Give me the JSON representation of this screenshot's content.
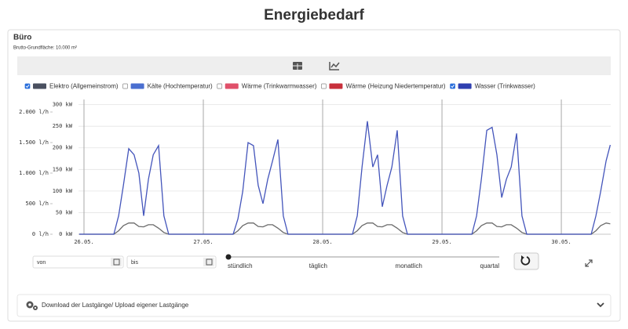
{
  "header": {
    "title": "Energiebedarf"
  },
  "panel": {
    "title": "Büro",
    "subtitle": "Brutto-Grundfläche: 10.000 m²"
  },
  "chart_data": {
    "type": "line",
    "x": [
      25.96,
      26.25,
      26.29,
      26.33,
      26.375,
      26.42,
      26.46,
      26.5,
      26.54,
      26.58,
      26.625,
      26.67,
      26.71,
      27.25,
      27.29,
      27.33,
      27.375,
      27.42,
      27.46,
      27.5,
      27.54,
      27.58,
      27.625,
      27.67,
      27.71,
      28.25,
      28.29,
      28.33,
      28.375,
      28.42,
      28.46,
      28.5,
      28.54,
      28.58,
      28.625,
      28.67,
      28.71,
      29.25,
      29.29,
      29.33,
      29.375,
      29.42,
      29.46,
      29.5,
      29.54,
      29.58,
      29.625,
      29.67,
      29.71,
      30.25,
      30.29,
      30.33,
      30.375,
      30.41
    ],
    "xlim": [
      25.954,
      30.414
    ],
    "xticks": [
      {
        "value": 26,
        "label": "26.05."
      },
      {
        "value": 27,
        "label": "27.05."
      },
      {
        "value": 28,
        "label": "28.05."
      },
      {
        "value": 29,
        "label": "29.05."
      },
      {
        "value": 30,
        "label": "30.05."
      }
    ],
    "ylim": [
      0,
      312
    ],
    "yticks": [
      {
        "value": 0,
        "label": "0 kW"
      },
      {
        "value": 50,
        "label": "50 kW"
      },
      {
        "value": 100,
        "label": "100 kW"
      },
      {
        "value": 150,
        "label": "150 kW"
      },
      {
        "value": 200,
        "label": "200 kW"
      },
      {
        "value": 250,
        "label": "250 kW"
      },
      {
        "value": 300,
        "label": "300 kW"
      }
    ],
    "y2lim": [
      0,
      2205
    ],
    "y2ticks": [
      {
        "value": 0,
        "label": "0 l/h"
      },
      {
        "value": 500,
        "label": "500 l/h"
      },
      {
        "value": 1000,
        "label": "1.000 l/h"
      },
      {
        "value": 1500,
        "label": "1.500 l/h"
      },
      {
        "value": 2000,
        "label": "2.000 l/h"
      }
    ],
    "grid": true,
    "series": [
      {
        "name": "Elektro (Allgemeinstrom)",
        "color": "#4a5060",
        "line_color": "#6b6b6b",
        "checked": true,
        "axis": "y",
        "values": [
          0,
          0,
          8,
          20,
          26,
          26,
          18,
          17,
          22,
          22,
          14,
          4,
          0,
          0,
          8,
          20,
          26,
          26,
          18,
          17,
          22,
          22,
          14,
          4,
          0,
          0,
          8,
          20,
          26,
          26,
          18,
          17,
          22,
          22,
          14,
          4,
          0,
          0,
          8,
          20,
          26,
          26,
          18,
          17,
          22,
          22,
          14,
          4,
          0,
          0,
          8,
          20,
          26,
          24
        ]
      },
      {
        "name": "Kälte (Hochtemperatur)",
        "color": "#4a6fd0",
        "checked": false
      },
      {
        "name": "Wärme (Trinkwarmwasser)",
        "color": "#e0506a",
        "checked": false
      },
      {
        "name": "Wärme (Heizung Niedertemperatur)",
        "color": "#c8303c",
        "checked": false
      },
      {
        "name": "Wasser (Trinkwasser)",
        "color": "#2f3fb0",
        "line_color": "#4455bb",
        "checked": true,
        "axis": "y2",
        "values": [
          0,
          0,
          300,
          800,
          1400,
          1300,
          1000,
          300,
          900,
          1300,
          1450,
          300,
          0,
          0,
          250,
          700,
          1500,
          1450,
          800,
          500,
          900,
          1200,
          1550,
          300,
          0,
          0,
          300,
          1100,
          1850,
          1100,
          1300,
          450,
          800,
          1100,
          1700,
          300,
          0,
          0,
          300,
          900,
          1700,
          1750,
          1300,
          600,
          900,
          1100,
          1650,
          300,
          0,
          0,
          300,
          700,
          1200,
          1460
        ]
      }
    ]
  },
  "controls": {
    "from_placeholder": "von",
    "to_placeholder": "bis",
    "resolution": [
      "stündlich",
      "täglich",
      "monatlich",
      "quartal"
    ]
  },
  "download": {
    "label": "Download der Lastgänge/ Upload eigener Lastgänge"
  }
}
